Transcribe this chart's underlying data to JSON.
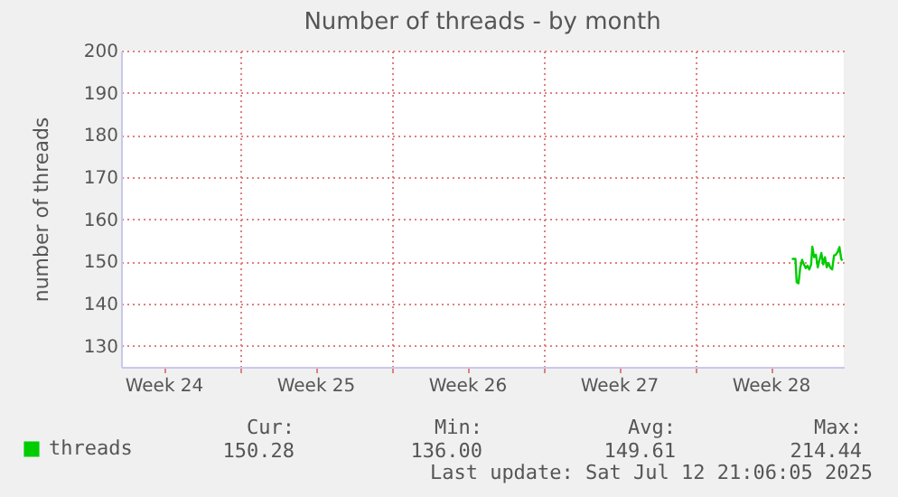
{
  "chart_data": {
    "type": "line",
    "title": "Number of threads - by month",
    "ylabel": "number of threads",
    "x": [
      "2025-07-10T11:30",
      "2025-07-10T15:30",
      "2025-07-10T16:50",
      "2025-07-10T18:50",
      "2025-07-10T20:50",
      "2025-07-10T22:50",
      "2025-07-11T00:50",
      "2025-07-11T02:50",
      "2025-07-11T04:50",
      "2025-07-11T06:50",
      "2025-07-11T08:50",
      "2025-07-11T10:10",
      "2025-07-11T12:10",
      "2025-07-11T14:10",
      "2025-07-11T16:10",
      "2025-07-11T18:10",
      "2025-07-11T20:10",
      "2025-07-11T22:10",
      "2025-07-12T00:10",
      "2025-07-12T02:10",
      "2025-07-12T04:10",
      "2025-07-12T06:10",
      "2025-07-12T08:10",
      "2025-07-12T10:10",
      "2025-07-12T12:10",
      "2025-07-12T14:10",
      "2025-07-12T16:10",
      "2025-07-12T18:10",
      "2025-07-12T19:30"
    ],
    "series": [
      {
        "name": "threads",
        "color": "#00cc00",
        "values": [
          150.6,
          150.6,
          145.1,
          144.8,
          148.6,
          150.4,
          149.3,
          148.4,
          149,
          148.1,
          149.3,
          153.5,
          151,
          151.6,
          148.6,
          150.4,
          152,
          149.3,
          151,
          148.6,
          149.6,
          148.5,
          148.1,
          151.4,
          151.6,
          152.2,
          153.4,
          150.6,
          150.2
        ]
      }
    ],
    "xlim": [
      "2025-06-09T13:00",
      "2025-07-12T21:00"
    ],
    "xticks": [
      {
        "value": "2025-06-11T12:00",
        "label": "Week 24"
      },
      {
        "value": "2025-06-15T00:00",
        "label": null
      },
      {
        "value": "2025-06-18T12:00",
        "label": "Week 25"
      },
      {
        "value": "2025-06-22T00:00",
        "label": null
      },
      {
        "value": "2025-06-25T12:00",
        "label": "Week 26"
      },
      {
        "value": "2025-06-29T00:00",
        "label": null
      },
      {
        "value": "2025-07-02T12:00",
        "label": "Week 27"
      },
      {
        "value": "2025-07-06T00:00",
        "label": null
      },
      {
        "value": "2025-07-09T12:00",
        "label": "Week 28"
      }
    ],
    "ylim": [
      125,
      200
    ],
    "yticks": [
      130,
      140,
      150,
      160,
      170,
      180,
      190,
      200
    ],
    "grid": true,
    "legend": "bottom",
    "annotations": [
      "Cur:",
      "150.28",
      "Min:",
      "136.00",
      "Avg:",
      "149.61",
      "Max:",
      "214.44",
      "Last update: Sat Jul 12 21:06:05 2025"
    ]
  }
}
